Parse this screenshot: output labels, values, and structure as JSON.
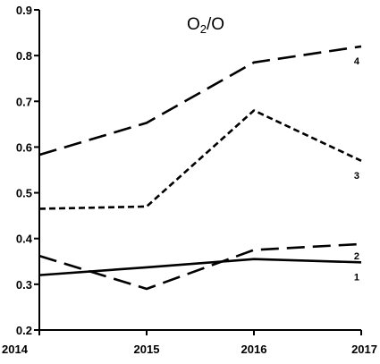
{
  "chart_data": {
    "type": "line",
    "title": {
      "main": "O",
      "subscript": "2",
      "suffix": "/O"
    },
    "xlabel": "",
    "ylabel": "",
    "x": [
      2014,
      2015,
      2016,
      2017
    ],
    "x_tick_labels": [
      "2014",
      "2015",
      "2016",
      "2017"
    ],
    "xlim": [
      2014,
      2017
    ],
    "ylim": [
      0.2,
      0.9
    ],
    "y_ticks": [
      0.2,
      0.3,
      0.4,
      0.5,
      0.6,
      0.7,
      0.8,
      0.9
    ],
    "y_tick_labels": [
      "0.2",
      "0.3",
      "0.4",
      "0.5",
      "0.6",
      "0.7",
      "0.8",
      "0.9"
    ],
    "grid": false,
    "series": [
      {
        "name": "1",
        "dash": "solid",
        "values": [
          0.32,
          0.337,
          0.355,
          0.348
        ]
      },
      {
        "name": "2",
        "dash": "long-dash",
        "values": [
          0.362,
          0.29,
          0.375,
          0.388
        ]
      },
      {
        "name": "3",
        "dash": "short-dash",
        "values": [
          0.465,
          0.47,
          0.68,
          0.57
        ]
      },
      {
        "name": "4",
        "dash": "long-dash",
        "values": [
          0.583,
          0.653,
          0.785,
          0.82
        ]
      }
    ],
    "line_color": "#000000"
  }
}
